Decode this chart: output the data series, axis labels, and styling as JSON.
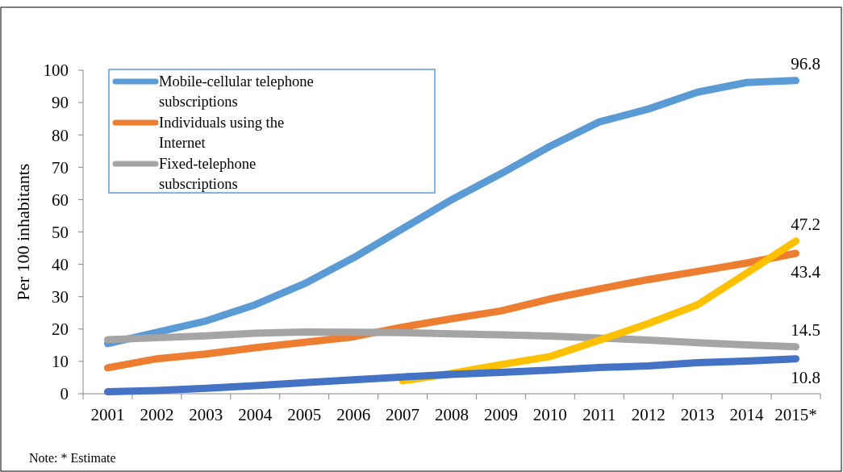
{
  "chart_data": {
    "type": "line",
    "ylabel": "Per 100 inhabitants",
    "categories": [
      "2001",
      "2002",
      "2003",
      "2004",
      "2005",
      "2006",
      "2007",
      "2008",
      "2009",
      "2010",
      "2011",
      "2012",
      "2013",
      "2014",
      "2015*"
    ],
    "series": [
      {
        "name": "Mobile-cellular telephone subscriptions",
        "color": "#5b9bd5",
        "values": [
          15.5,
          19,
          22.5,
          27.5,
          34,
          42,
          51,
          60,
          68,
          76.5,
          84,
          88,
          93.2,
          96.2,
          96.8
        ],
        "value_labels": [
          null,
          null,
          null,
          null,
          null,
          null,
          null,
          null,
          null,
          null,
          null,
          null,
          null,
          null,
          "96.8"
        ]
      },
      {
        "name": "Individuals using the Internet",
        "color": "#ed7d31",
        "values": [
          8,
          10.8,
          12.3,
          14.2,
          15.9,
          17.6,
          20.6,
          23.2,
          25.6,
          29.3,
          32.4,
          35.3,
          37.8,
          40.4,
          43.4
        ],
        "value_labels": [
          null,
          null,
          null,
          null,
          null,
          null,
          null,
          null,
          null,
          null,
          null,
          null,
          null,
          null,
          "43.4"
        ]
      },
      {
        "name": "Fixed-telephone subscriptions",
        "color": "#a5a5a5",
        "values": [
          16.7,
          17.3,
          17.9,
          18.7,
          19.1,
          19,
          18.9,
          18.5,
          18.2,
          17.8,
          17.2,
          16.6,
          15.8,
          15.1,
          14.5
        ],
        "value_labels": [
          null,
          null,
          null,
          null,
          null,
          null,
          null,
          null,
          null,
          null,
          null,
          null,
          null,
          null,
          "14.5"
        ]
      },
      {
        "color": "#ffc000",
        "values": [
          null,
          null,
          null,
          null,
          null,
          null,
          4,
          6.3,
          9,
          11.5,
          16.5,
          21.7,
          27.5,
          37.3,
          47.2
        ],
        "value_labels": [
          null,
          null,
          null,
          null,
          null,
          null,
          null,
          null,
          null,
          null,
          null,
          null,
          null,
          null,
          "47.2"
        ]
      },
      {
        "color": "#4472c4",
        "values": [
          0.6,
          1,
          1.7,
          2.5,
          3.4,
          4.3,
          5.2,
          6,
          6.6,
          7.3,
          8.1,
          8.6,
          9.6,
          10.1,
          10.8
        ],
        "value_labels": [
          null,
          null,
          null,
          null,
          null,
          null,
          null,
          null,
          null,
          null,
          null,
          null,
          null,
          null,
          "10.8"
        ]
      }
    ],
    "ylim": [
      0,
      100
    ],
    "yticks": [
      0,
      10,
      20,
      30,
      40,
      50,
      60,
      70,
      80,
      90,
      100
    ],
    "legend": "top left",
    "grid": false,
    "marker": "none",
    "line_style": "solid",
    "annotations": [
      "Note: * Estimate"
    ]
  }
}
